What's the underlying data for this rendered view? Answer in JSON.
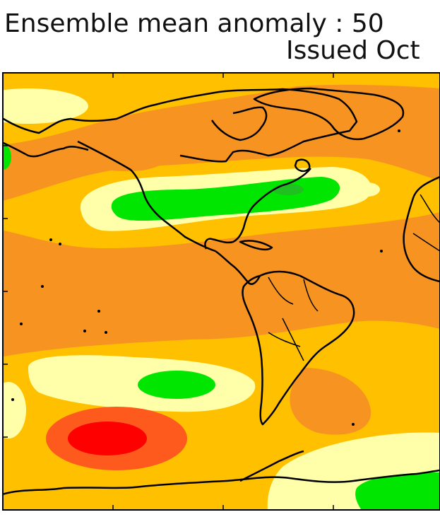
{
  "title": {
    "line1": "Ensemble mean anomaly : 50",
    "line2": "Issued Oct"
  },
  "map": {
    "projection": "equirectangular",
    "visible_region": "Americas, North Pacific, South Pacific, South Atlantic, West Africa, Antarctica coast",
    "colors": {
      "pale_yellow": "#ffffaa",
      "yellow_orange": "#ffc000",
      "orange": "#f79421",
      "red_orange": "#ff5a1e",
      "red": "#ff0000",
      "green": "#00e600",
      "coastline": "#000000"
    }
  }
}
